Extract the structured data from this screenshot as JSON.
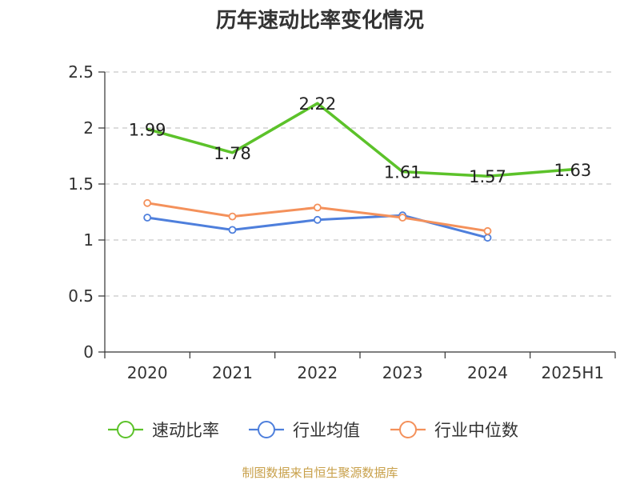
{
  "chart_data": {
    "type": "line",
    "title": "历年速动比率变化情况",
    "categories": [
      "2020",
      "2021",
      "2022",
      "2023",
      "2024",
      "2025H1"
    ],
    "ylim": [
      0,
      2.5
    ],
    "y_ticks": [
      "0",
      "0.5",
      "1",
      "1.5",
      "2",
      "2.5"
    ],
    "grid": true,
    "legend_position": "bottom",
    "series": [
      {
        "name": "速动比率",
        "color": "#5cc22a",
        "values": [
          1.99,
          1.78,
          2.22,
          1.61,
          1.57,
          1.63
        ],
        "data_labels": [
          "1.99",
          "1.78",
          "2.22",
          "1.61",
          "1.57",
          "1.63"
        ],
        "show_markers": false
      },
      {
        "name": "行业均值",
        "color": "#4e7fdc",
        "values": [
          1.2,
          1.09,
          1.18,
          1.22,
          1.02,
          null
        ],
        "show_markers": true
      },
      {
        "name": "行业中位数",
        "color": "#f4915b",
        "values": [
          1.33,
          1.21,
          1.29,
          1.2,
          1.08,
          null
        ],
        "show_markers": true
      }
    ]
  },
  "source": "制图数据来自恒生聚源数据库"
}
